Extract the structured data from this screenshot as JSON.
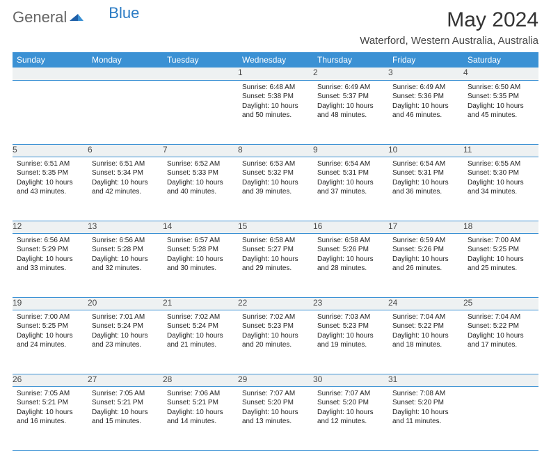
{
  "logo": {
    "text1": "General",
    "text2": "Blue"
  },
  "title": "May 2024",
  "location": "Waterford, Western Australia, Australia",
  "colors": {
    "header_bg": "#3b91d4",
    "header_text": "#ffffff",
    "daynum_bg": "#eef1f2",
    "daynum_text": "#4a4a4a",
    "border": "#3b91d4",
    "logo_blue": "#2b7bc4"
  },
  "typography": {
    "title_fontsize": 30,
    "location_fontsize": 15,
    "header_fontsize": 12,
    "daynum_fontsize": 12,
    "info_fontsize": 10
  },
  "weekdays": [
    "Sunday",
    "Monday",
    "Tuesday",
    "Wednesday",
    "Thursday",
    "Friday",
    "Saturday"
  ],
  "weeks": [
    [
      null,
      null,
      null,
      {
        "n": "1",
        "sunrise": "6:48 AM",
        "sunset": "5:38 PM",
        "d1": "Daylight: 10 hours",
        "d2": "and 50 minutes."
      },
      {
        "n": "2",
        "sunrise": "6:49 AM",
        "sunset": "5:37 PM",
        "d1": "Daylight: 10 hours",
        "d2": "and 48 minutes."
      },
      {
        "n": "3",
        "sunrise": "6:49 AM",
        "sunset": "5:36 PM",
        "d1": "Daylight: 10 hours",
        "d2": "and 46 minutes."
      },
      {
        "n": "4",
        "sunrise": "6:50 AM",
        "sunset": "5:35 PM",
        "d1": "Daylight: 10 hours",
        "d2": "and 45 minutes."
      }
    ],
    [
      {
        "n": "5",
        "sunrise": "6:51 AM",
        "sunset": "5:35 PM",
        "d1": "Daylight: 10 hours",
        "d2": "and 43 minutes."
      },
      {
        "n": "6",
        "sunrise": "6:51 AM",
        "sunset": "5:34 PM",
        "d1": "Daylight: 10 hours",
        "d2": "and 42 minutes."
      },
      {
        "n": "7",
        "sunrise": "6:52 AM",
        "sunset": "5:33 PM",
        "d1": "Daylight: 10 hours",
        "d2": "and 40 minutes."
      },
      {
        "n": "8",
        "sunrise": "6:53 AM",
        "sunset": "5:32 PM",
        "d1": "Daylight: 10 hours",
        "d2": "and 39 minutes."
      },
      {
        "n": "9",
        "sunrise": "6:54 AM",
        "sunset": "5:31 PM",
        "d1": "Daylight: 10 hours",
        "d2": "and 37 minutes."
      },
      {
        "n": "10",
        "sunrise": "6:54 AM",
        "sunset": "5:31 PM",
        "d1": "Daylight: 10 hours",
        "d2": "and 36 minutes."
      },
      {
        "n": "11",
        "sunrise": "6:55 AM",
        "sunset": "5:30 PM",
        "d1": "Daylight: 10 hours",
        "d2": "and 34 minutes."
      }
    ],
    [
      {
        "n": "12",
        "sunrise": "6:56 AM",
        "sunset": "5:29 PM",
        "d1": "Daylight: 10 hours",
        "d2": "and 33 minutes."
      },
      {
        "n": "13",
        "sunrise": "6:56 AM",
        "sunset": "5:28 PM",
        "d1": "Daylight: 10 hours",
        "d2": "and 32 minutes."
      },
      {
        "n": "14",
        "sunrise": "6:57 AM",
        "sunset": "5:28 PM",
        "d1": "Daylight: 10 hours",
        "d2": "and 30 minutes."
      },
      {
        "n": "15",
        "sunrise": "6:58 AM",
        "sunset": "5:27 PM",
        "d1": "Daylight: 10 hours",
        "d2": "and 29 minutes."
      },
      {
        "n": "16",
        "sunrise": "6:58 AM",
        "sunset": "5:26 PM",
        "d1": "Daylight: 10 hours",
        "d2": "and 28 minutes."
      },
      {
        "n": "17",
        "sunrise": "6:59 AM",
        "sunset": "5:26 PM",
        "d1": "Daylight: 10 hours",
        "d2": "and 26 minutes."
      },
      {
        "n": "18",
        "sunrise": "7:00 AM",
        "sunset": "5:25 PM",
        "d1": "Daylight: 10 hours",
        "d2": "and 25 minutes."
      }
    ],
    [
      {
        "n": "19",
        "sunrise": "7:00 AM",
        "sunset": "5:25 PM",
        "d1": "Daylight: 10 hours",
        "d2": "and 24 minutes."
      },
      {
        "n": "20",
        "sunrise": "7:01 AM",
        "sunset": "5:24 PM",
        "d1": "Daylight: 10 hours",
        "d2": "and 23 minutes."
      },
      {
        "n": "21",
        "sunrise": "7:02 AM",
        "sunset": "5:24 PM",
        "d1": "Daylight: 10 hours",
        "d2": "and 21 minutes."
      },
      {
        "n": "22",
        "sunrise": "7:02 AM",
        "sunset": "5:23 PM",
        "d1": "Daylight: 10 hours",
        "d2": "and 20 minutes."
      },
      {
        "n": "23",
        "sunrise": "7:03 AM",
        "sunset": "5:23 PM",
        "d1": "Daylight: 10 hours",
        "d2": "and 19 minutes."
      },
      {
        "n": "24",
        "sunrise": "7:04 AM",
        "sunset": "5:22 PM",
        "d1": "Daylight: 10 hours",
        "d2": "and 18 minutes."
      },
      {
        "n": "25",
        "sunrise": "7:04 AM",
        "sunset": "5:22 PM",
        "d1": "Daylight: 10 hours",
        "d2": "and 17 minutes."
      }
    ],
    [
      {
        "n": "26",
        "sunrise": "7:05 AM",
        "sunset": "5:21 PM",
        "d1": "Daylight: 10 hours",
        "d2": "and 16 minutes."
      },
      {
        "n": "27",
        "sunrise": "7:05 AM",
        "sunset": "5:21 PM",
        "d1": "Daylight: 10 hours",
        "d2": "and 15 minutes."
      },
      {
        "n": "28",
        "sunrise": "7:06 AM",
        "sunset": "5:21 PM",
        "d1": "Daylight: 10 hours",
        "d2": "and 14 minutes."
      },
      {
        "n": "29",
        "sunrise": "7:07 AM",
        "sunset": "5:20 PM",
        "d1": "Daylight: 10 hours",
        "d2": "and 13 minutes."
      },
      {
        "n": "30",
        "sunrise": "7:07 AM",
        "sunset": "5:20 PM",
        "d1": "Daylight: 10 hours",
        "d2": "and 12 minutes."
      },
      {
        "n": "31",
        "sunrise": "7:08 AM",
        "sunset": "5:20 PM",
        "d1": "Daylight: 10 hours",
        "d2": "and 11 minutes."
      },
      null
    ]
  ],
  "labels": {
    "sunrise": "Sunrise: ",
    "sunset": "Sunset: "
  }
}
